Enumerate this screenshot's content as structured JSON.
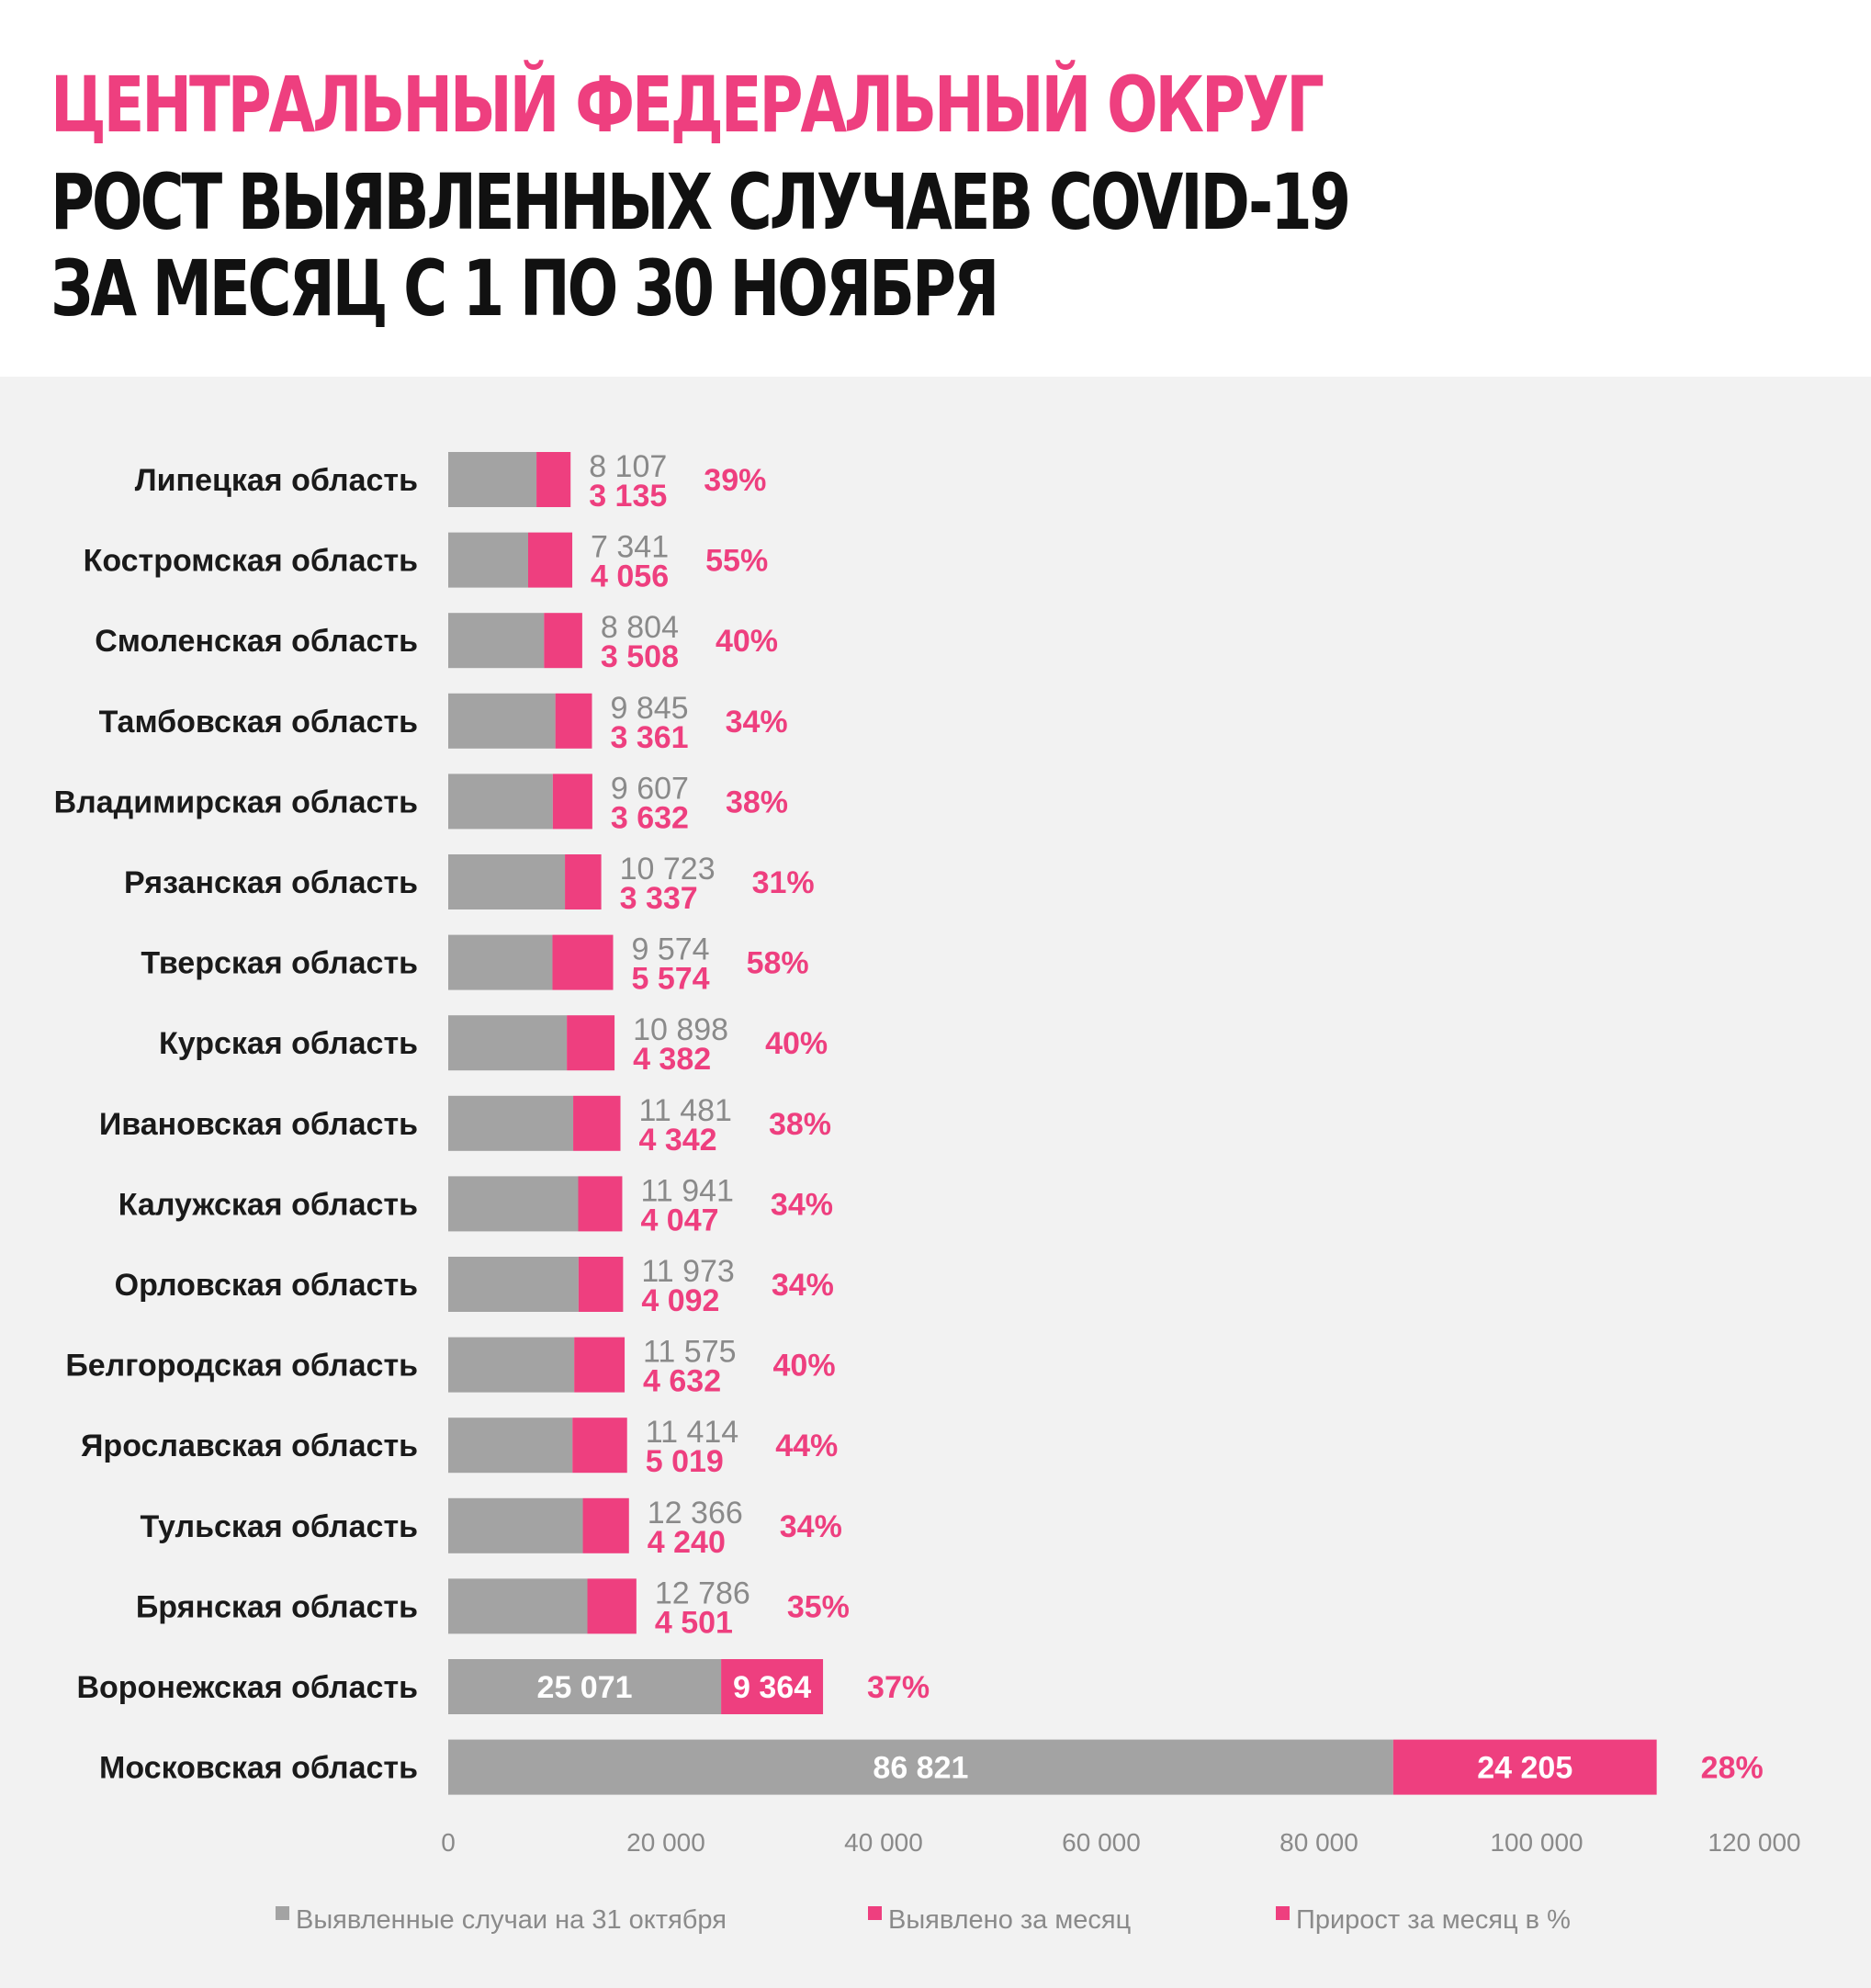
{
  "header": {
    "title_line1": "ЦЕНТРАЛЬНЫЙ ФЕДЕРАЛЬНЫЙ ОКРУГ",
    "title_line2": "РОСТ ВЫЯВЛЕННЫХ СЛУЧАЕВ COVID-19",
    "title_line3": "ЗА МЕСЯЦ С 1 ПО 30 НОЯБРЯ"
  },
  "colors": {
    "base": "#a3a3a3",
    "added": "#ee3f7f",
    "background": "#f2f2f2"
  },
  "chart_data": {
    "type": "bar",
    "orientation": "horizontal",
    "stacked": true,
    "categories": [
      "Липецкая область",
      "Костромская область",
      "Смоленская область",
      "Тамбовская область",
      "Владимирская область",
      "Рязанская область",
      "Тверская область",
      "Курская область",
      "Ивановская область",
      "Калужская область",
      "Орловская область",
      "Белгородская область",
      "Ярославская область",
      "Тульская область",
      "Брянская область",
      "Воронежская область",
      "Московская область"
    ],
    "series": [
      {
        "name": "Выявленные случаи на 31 октября",
        "values": [
          8107,
          7341,
          8804,
          9845,
          9607,
          10723,
          9574,
          10898,
          11481,
          11941,
          11973,
          11575,
          11414,
          12366,
          12786,
          25071,
          86821
        ],
        "labels": [
          "8 107",
          "7 341",
          "8 804",
          "9 845",
          "9 607",
          "10 723",
          "9 574",
          "10 898",
          "11 481",
          "11 941",
          "11 973",
          "11 575",
          "11 414",
          "12 366",
          "12 786",
          "25 071",
          "86 821"
        ]
      },
      {
        "name": "Выявлено за месяц",
        "values": [
          3135,
          4056,
          3508,
          3361,
          3632,
          3337,
          5574,
          4382,
          4342,
          4047,
          4092,
          4632,
          5019,
          4240,
          4501,
          9364,
          24205
        ],
        "labels": [
          "3 135",
          "4 056",
          "3 508",
          "3 361",
          "3 632",
          "3 337",
          "5 574",
          "4 382",
          "4 342",
          "4 047",
          "4 092",
          "4 632",
          "5 019",
          "4 240",
          "4 501",
          "9 364",
          "24 205"
        ]
      },
      {
        "name": "Прирост за месяц в %",
        "values": [
          39,
          55,
          40,
          34,
          38,
          31,
          58,
          40,
          38,
          34,
          34,
          40,
          44,
          34,
          35,
          37,
          28
        ],
        "labels": [
          "39%",
          "55%",
          "40%",
          "34%",
          "38%",
          "31%",
          "58%",
          "40%",
          "38%",
          "34%",
          "34%",
          "40%",
          "44%",
          "34%",
          "35%",
          "37%",
          "28%"
        ]
      }
    ],
    "xlim": [
      0,
      120000
    ],
    "xticks": [
      0,
      20000,
      40000,
      60000,
      80000,
      100000,
      120000
    ],
    "xtick_labels": [
      "0",
      "20 000",
      "40 000",
      "60 000",
      "80 000",
      "100 000",
      "120 000"
    ],
    "legend_position": "bottom",
    "grid": false
  }
}
